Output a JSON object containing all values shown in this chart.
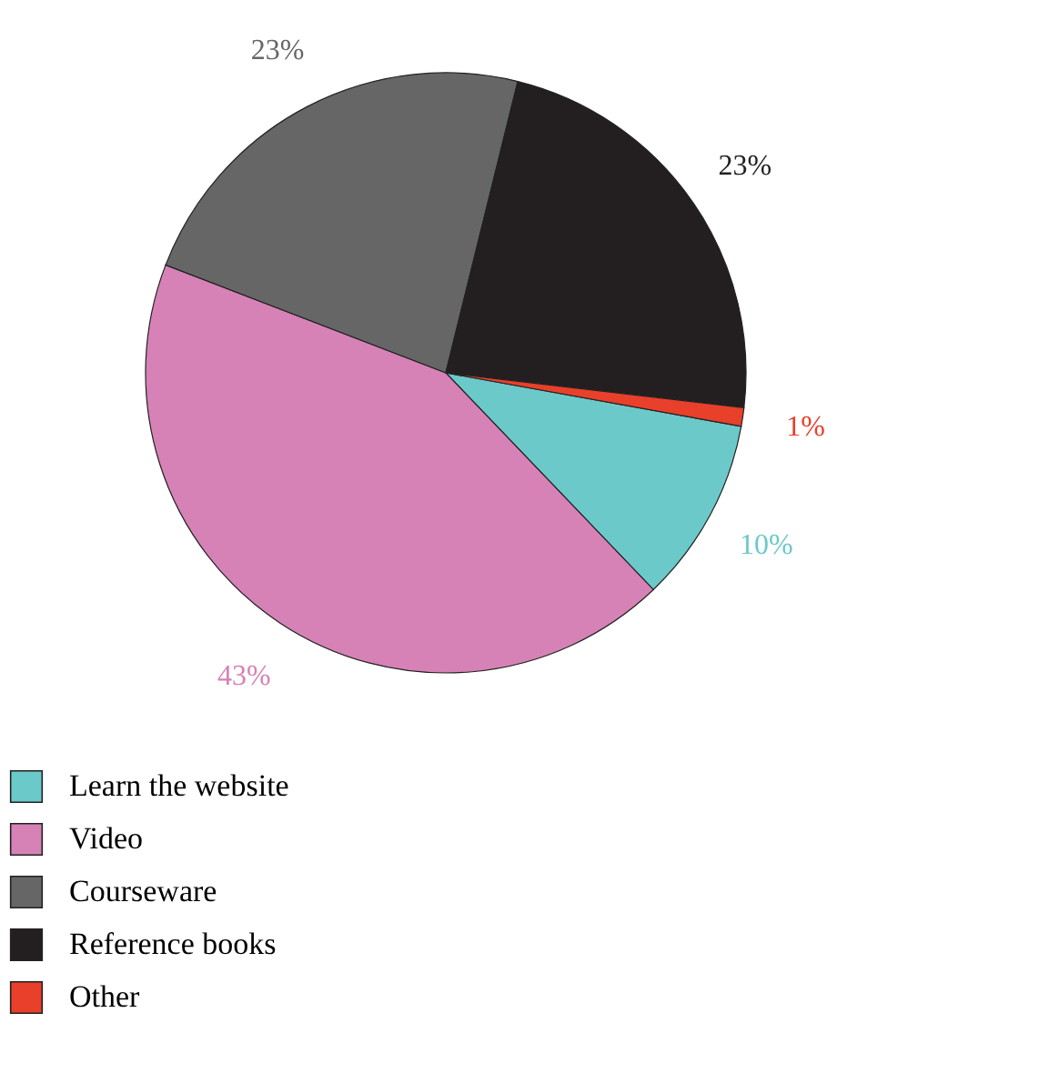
{
  "chart_data": {
    "type": "pie",
    "categories": [
      "Learn the website",
      "Video",
      "Courseware",
      "Reference books",
      "Other"
    ],
    "values": [
      10,
      43,
      23,
      23,
      1
    ],
    "colors": [
      "#6cc9c9",
      "#d682b6",
      "#666666",
      "#231f20",
      "#e8402a"
    ],
    "value_labels": [
      "10%",
      "43%",
      "23%",
      "23%",
      "1%"
    ],
    "legend": "bottom"
  }
}
